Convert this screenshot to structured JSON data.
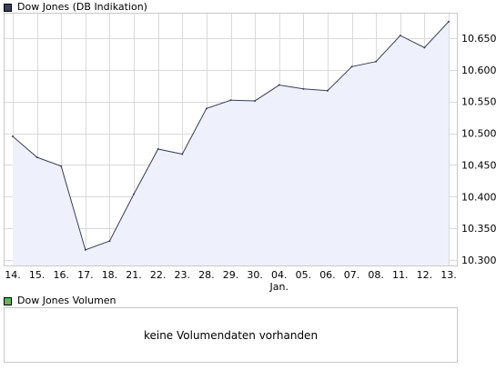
{
  "legend": {
    "price_label": "Dow Jones (DB Indikation)",
    "price_swatch_color": "#3a3f5c",
    "volume_label": "Dow Jones Volumen",
    "volume_swatch_color": "#5cb85c"
  },
  "volume_panel": {
    "message": "keine Volumendaten vorhanden"
  },
  "chart_data": {
    "type": "area",
    "title": "Dow Jones (DB Indikation)",
    "xlabel": "",
    "ylabel": "",
    "month_label": "Jan.",
    "month_label_under": "04.",
    "categories": [
      "14.",
      "15.",
      "16.",
      "17.",
      "18.",
      "21.",
      "22.",
      "23.",
      "28.",
      "29.",
      "30.",
      "04.",
      "05.",
      "06.",
      "07.",
      "08.",
      "11.",
      "12.",
      "13."
    ],
    "series": [
      {
        "name": "Dow Jones (DB Indikation)",
        "values": [
          10495,
          10462,
          10448,
          10316,
          10330,
          10404,
          10475,
          10467,
          10539,
          10552,
          10551,
          10576,
          10570,
          10567,
          10605,
          10613,
          10654,
          10635,
          10676
        ]
      }
    ],
    "yticks": [
      10300,
      10350,
      10400,
      10450,
      10500,
      10550,
      10600,
      10650
    ],
    "ytick_labels": [
      "10.300",
      "10.350",
      "10.400",
      "10.450",
      "10.500",
      "10.550",
      "10.600",
      "10.650"
    ],
    "ylim": [
      10290,
      10690
    ],
    "grid": true,
    "axis_position": "right",
    "colors": {
      "line": "#3a3f5c",
      "fill": "#eef1fb",
      "grid": "#dadada",
      "frame": "#c8c8c8"
    }
  }
}
